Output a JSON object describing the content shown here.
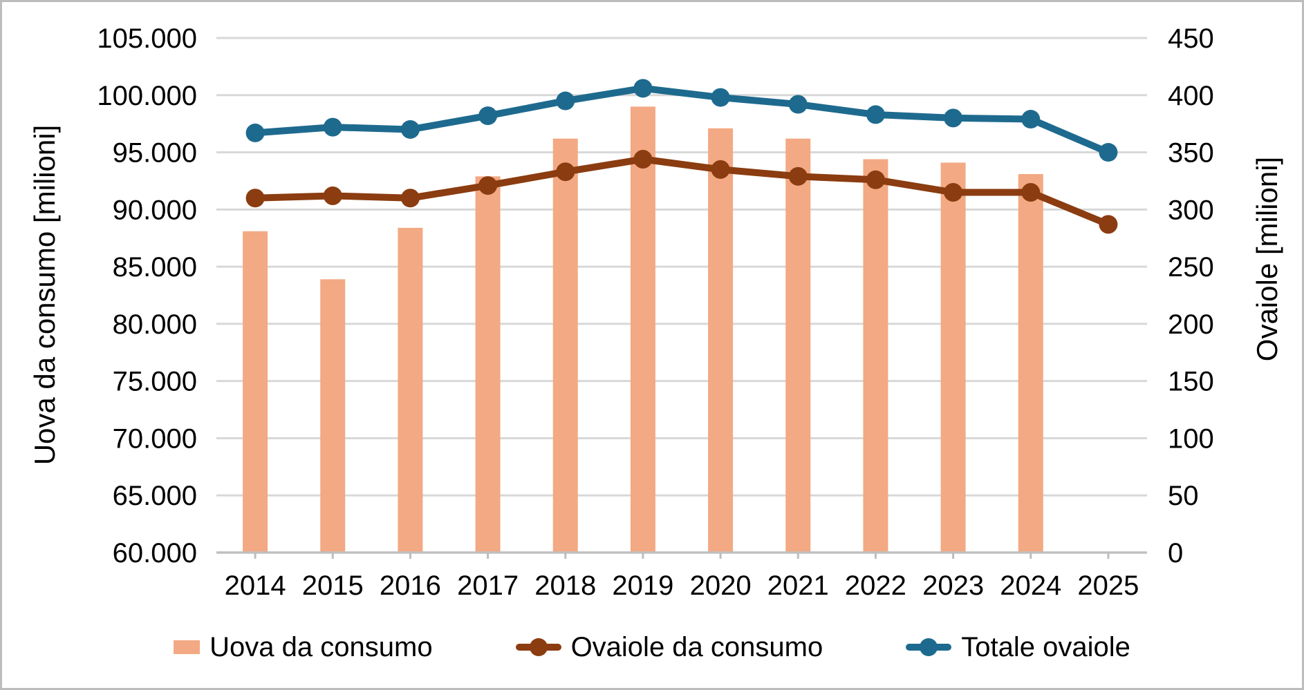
{
  "chart_data": {
    "type": "combo",
    "title": "",
    "categories": [
      "2014",
      "2015",
      "2016",
      "2017",
      "2018",
      "2019",
      "2020",
      "2021",
      "2022",
      "2023",
      "2024",
      "2025"
    ],
    "series": [
      {
        "name": "Uova da consumo",
        "type": "bar",
        "axis": "left",
        "color": "#F3A983",
        "values": [
          88100,
          83900,
          88400,
          92900,
          96200,
          99000,
          97100,
          96200,
          94400,
          94100,
          93100,
          null
        ]
      },
      {
        "name": "Ovaiole da consumo",
        "type": "line",
        "axis": "right",
        "color": "#8B3C10",
        "values": [
          310,
          312,
          310,
          321,
          333,
          344,
          335,
          329,
          326,
          315,
          315,
          287
        ]
      },
      {
        "name": "Totale ovaiole",
        "type": "line",
        "axis": "right",
        "color": "#1E6A8E",
        "values": [
          367,
          372,
          370,
          382,
          395,
          406,
          398,
          392,
          383,
          380,
          379,
          350
        ]
      }
    ],
    "left_axis": {
      "title": "Uova da consumo [milioni]",
      "min": 60000,
      "max": 105000,
      "step": 5000,
      "tick_labels": [
        "105.000",
        "100.000",
        "95.000",
        "90.000",
        "85.000",
        "80.000",
        "75.000",
        "70.000",
        "65.000",
        "60.000"
      ]
    },
    "right_axis": {
      "title": "Ovaiole [milioni]",
      "min": 0,
      "max": 450,
      "step": 50,
      "tick_labels": [
        "450",
        "400",
        "350",
        "300",
        "250",
        "200",
        "150",
        "100",
        "50",
        "0"
      ]
    },
    "grid": true,
    "legend_position": "bottom"
  },
  "colors": {
    "gridline": "#D8D8D8",
    "axis_line": "#C0C0C0",
    "tick_mark": "#BDBDBD",
    "text": "#000000",
    "background": "#FFFFFF",
    "frame_border": "#BDBDBD"
  }
}
